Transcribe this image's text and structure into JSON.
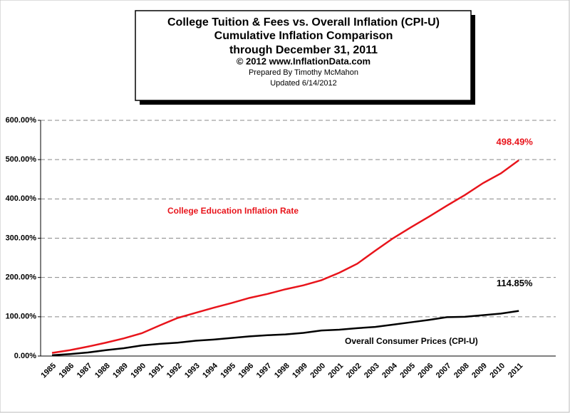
{
  "chart_data": {
    "type": "line",
    "title": "College Tuition & Fees vs. Overall  Inflation (CPI-U)",
    "subtitles": [
      "Cumulative Inflation Comparison",
      "through December 31, 2011",
      "© 2012 www.InflationData.com",
      "Prepared  By Timothy McMahon",
      "Updated  6/14/2012"
    ],
    "categories": [
      "1985",
      "1986",
      "1987",
      "1988",
      "1989",
      "1990",
      "1991",
      "1992",
      "1993",
      "1994",
      "1995",
      "1996",
      "1997",
      "1998",
      "1999",
      "2000",
      "2001",
      "2002",
      "2003",
      "2004",
      "2005",
      "2006",
      "2007",
      "2008",
      "2009",
      "2010",
      "2011"
    ],
    "series": [
      {
        "name": "College Education Inflation Rate",
        "color": "#e8141b",
        "values": [
          8,
          15,
          24,
          34,
          45,
          58,
          78,
          97,
          110,
          123,
          135,
          148,
          158,
          170,
          180,
          193,
          212,
          235,
          268,
          300,
          328,
          355,
          383,
          410,
          440,
          465,
          498.49
        ],
        "value_labels": [
          null,
          null,
          null,
          null,
          null,
          null,
          null,
          null,
          null,
          null,
          null,
          null,
          null,
          null,
          null,
          null,
          null,
          null,
          null,
          null,
          null,
          null,
          null,
          null,
          null,
          null,
          "498.49%"
        ]
      },
      {
        "name": "Overall Consumer Prices (CPI-U)",
        "color": "#000000",
        "values": [
          2,
          5,
          9,
          15,
          20,
          27,
          31,
          34,
          39,
          42,
          46,
          50,
          53,
          55,
          59,
          65,
          67,
          71,
          74,
          80,
          86,
          92,
          99,
          100,
          104,
          108,
          114.85
        ],
        "value_labels": [
          null,
          null,
          null,
          null,
          null,
          null,
          null,
          null,
          null,
          null,
          null,
          null,
          null,
          null,
          null,
          null,
          null,
          null,
          null,
          null,
          null,
          null,
          null,
          null,
          null,
          null,
          "114.85%"
        ]
      }
    ],
    "ylim": [
      0,
      600
    ],
    "yticks": [
      {
        "value": 0,
        "label": "0.00%"
      },
      {
        "value": 100,
        "label": "100.00%"
      },
      {
        "value": 200,
        "label": "200.00%"
      },
      {
        "value": 300,
        "label": "300.00%"
      },
      {
        "value": 400,
        "label": "400.00%"
      },
      {
        "value": 500,
        "label": "500.00%"
      },
      {
        "value": 600,
        "label": "600.00%"
      }
    ],
    "grid": true
  }
}
